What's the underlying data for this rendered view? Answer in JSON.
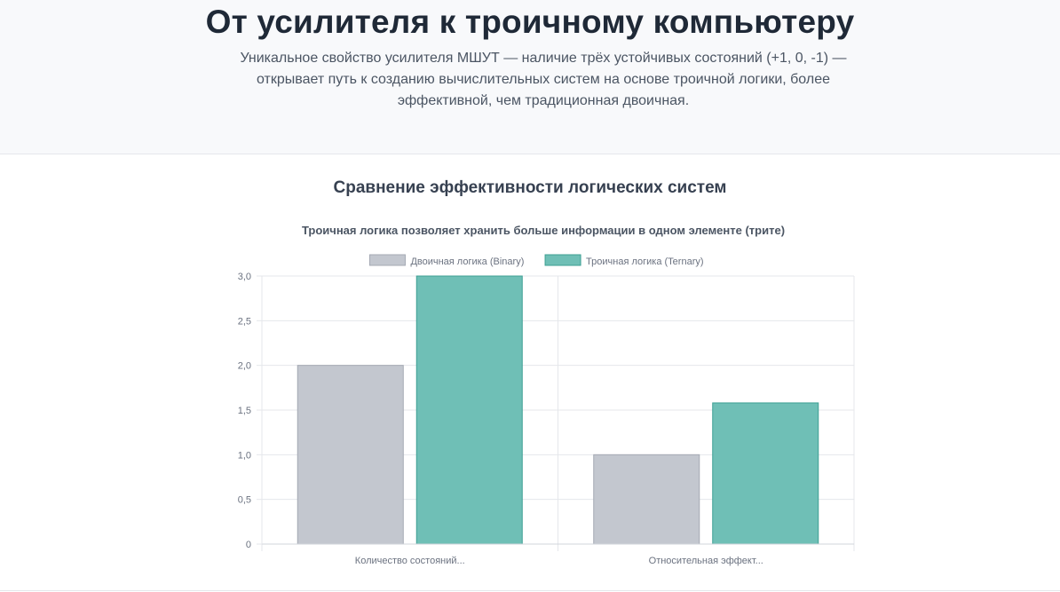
{
  "hero": {
    "title": "От усилителя к троичному компьютеру",
    "subtitle": "Уникальное свойство усилителя МШУТ — наличие трёх устойчивых состояний (+1, 0, -1) — открывает путь к созданию вычислительных систем на основе троичной логики, более эффективной, чем традиционная двоичная."
  },
  "section": {
    "title": "Сравнение эффективности логических систем"
  },
  "chart_data": {
    "type": "bar",
    "title": "Троичная логика позволяет хранить больше информации в одном элементе (трите)",
    "categories": [
      "Количество состояний...",
      "Относительная эффект..."
    ],
    "series": [
      {
        "name": "Двоичная логика (Binary)",
        "values": [
          2,
          1
        ],
        "fill": "#c3c7cf",
        "stroke": "#a4a9b3"
      },
      {
        "name": "Троичная логика (Ternary)",
        "values": [
          3,
          1.58
        ],
        "fill": "#6fbfb6",
        "stroke": "#3d9f93"
      }
    ],
    "ylim": [
      0,
      3
    ],
    "yticks": [
      0,
      0.5,
      1,
      1.5,
      2,
      2.5,
      3
    ],
    "ytick_labels": [
      "0",
      "0,5",
      "1,0",
      "1,5",
      "2,0",
      "2,5",
      "3,0"
    ],
    "grid": true,
    "legend_position": "top",
    "xlabel": "",
    "ylabel": ""
  }
}
